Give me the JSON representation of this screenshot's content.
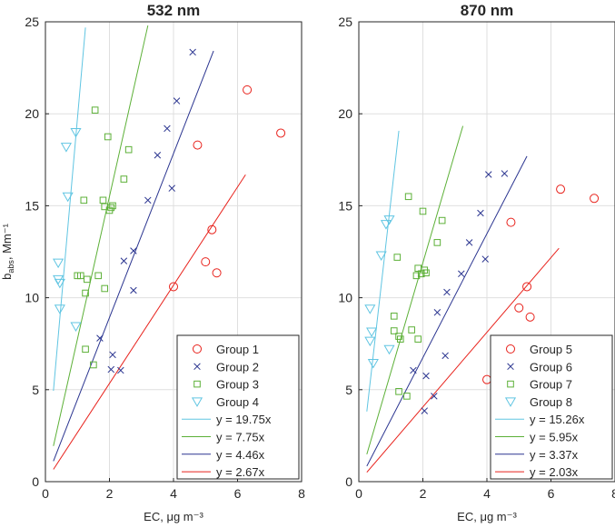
{
  "chart_data": [
    {
      "type": "scatter",
      "title": "532 nm",
      "xlabel": "EC, μg m⁻³",
      "ylabel_main": "b",
      "ylabel_sub": "abs",
      "ylabel_tail": ", Mm⁻¹",
      "xlim": [
        0,
        8
      ],
      "ylim": [
        0,
        25
      ],
      "xticks": [
        0,
        2,
        4,
        6,
        8
      ],
      "yticks": [
        0,
        5,
        10,
        15,
        20,
        25
      ],
      "grid": true,
      "legend_placement": "bottom-right",
      "series": [
        {
          "name": "Group 1",
          "marker": "circle",
          "color": "#e8221c",
          "points": [
            [
              4.0,
              10.6
            ],
            [
              5.0,
              11.95
            ],
            [
              5.2,
              13.7
            ],
            [
              5.35,
              11.35
            ],
            [
              4.75,
              18.3
            ],
            [
              6.3,
              21.3
            ],
            [
              7.35,
              18.95
            ]
          ]
        },
        {
          "name": "Group 2",
          "marker": "x",
          "color": "#2b3590",
          "points": [
            [
              1.7,
              7.8
            ],
            [
              2.1,
              6.9
            ],
            [
              2.05,
              6.1
            ],
            [
              2.35,
              6.05
            ],
            [
              2.45,
              12.0
            ],
            [
              2.75,
              12.55
            ],
            [
              2.75,
              10.4
            ],
            [
              3.2,
              15.3
            ],
            [
              3.5,
              17.75
            ],
            [
              3.8,
              19.2
            ],
            [
              3.95,
              15.95
            ],
            [
              4.1,
              20.7
            ],
            [
              4.6,
              23.35
            ]
          ]
        },
        {
          "name": "Group 3",
          "marker": "square",
          "color": "#5cb037",
          "points": [
            [
              1.55,
              20.2
            ],
            [
              1.0,
              11.2
            ],
            [
              1.1,
              11.2
            ],
            [
              1.2,
              15.3
            ],
            [
              1.25,
              10.25
            ],
            [
              1.3,
              11.0
            ],
            [
              1.25,
              7.2
            ],
            [
              1.5,
              6.35
            ],
            [
              1.65,
              11.2
            ],
            [
              1.8,
              15.3
            ],
            [
              1.85,
              14.95
            ],
            [
              1.85,
              10.5
            ],
            [
              1.95,
              18.75
            ],
            [
              2.0,
              14.75
            ],
            [
              2.05,
              14.9
            ],
            [
              2.1,
              15.0
            ],
            [
              2.45,
              16.45
            ],
            [
              2.6,
              18.05
            ]
          ]
        },
        {
          "name": "Group  4",
          "marker": "triangle",
          "color": "#60c5e2",
          "points": [
            [
              0.65,
              18.2
            ],
            [
              0.95,
              19.0
            ],
            [
              0.7,
              15.5
            ],
            [
              0.4,
              11.9
            ],
            [
              0.4,
              11.0
            ],
            [
              0.45,
              10.8
            ],
            [
              0.45,
              9.4
            ],
            [
              0.95,
              8.45
            ]
          ]
        }
      ],
      "fits": [
        {
          "label": "y = 19.75x",
          "slope": 19.75,
          "x_range": [
            0.25,
            1.25
          ],
          "color": "#60c5e2"
        },
        {
          "label": "y = 7.75x",
          "slope": 7.75,
          "x_range": [
            0.25,
            3.2
          ],
          "color": "#5cb037"
        },
        {
          "label": "y = 4.46x",
          "slope": 4.46,
          "x_range": [
            0.25,
            5.25
          ],
          "color": "#2b3590"
        },
        {
          "label": "y = 2.67x",
          "slope": 2.67,
          "x_range": [
            0.25,
            6.25
          ],
          "color": "#e8221c"
        }
      ]
    },
    {
      "type": "scatter",
      "title": "870 nm",
      "xlabel": "EC, μg m⁻³",
      "ylabel_main": "",
      "ylabel_sub": "",
      "ylabel_tail": "",
      "xlim": [
        0,
        8
      ],
      "ylim": [
        0,
        25
      ],
      "xticks": [
        0,
        2,
        4,
        6,
        8
      ],
      "yticks": [
        0,
        5,
        10,
        15,
        20,
        25
      ],
      "grid": true,
      "legend_placement": "bottom-right",
      "series": [
        {
          "name": "Group 5",
          "marker": "circle",
          "color": "#e8221c",
          "points": [
            [
              4.0,
              5.55
            ],
            [
              5.0,
              9.45
            ],
            [
              5.25,
              10.6
            ],
            [
              5.35,
              8.95
            ],
            [
              4.75,
              14.1
            ],
            [
              6.3,
              15.9
            ],
            [
              7.35,
              15.4
            ]
          ]
        },
        {
          "name": "Group 6",
          "marker": "x",
          "color": "#2b3590",
          "points": [
            [
              1.7,
              6.05
            ],
            [
              2.1,
              5.75
            ],
            [
              2.05,
              3.85
            ],
            [
              2.35,
              4.65
            ],
            [
              2.45,
              9.2
            ],
            [
              2.7,
              6.85
            ],
            [
              2.75,
              10.3
            ],
            [
              3.2,
              11.3
            ],
            [
              3.45,
              13.0
            ],
            [
              3.8,
              14.6
            ],
            [
              3.95,
              12.1
            ],
            [
              4.05,
              16.7
            ],
            [
              4.55,
              16.75
            ]
          ]
        },
        {
          "name": "Group 7",
          "marker": "square",
          "color": "#5cb037",
          "points": [
            [
              1.55,
              15.5
            ],
            [
              1.1,
              9.0
            ],
            [
              1.1,
              8.2
            ],
            [
              1.2,
              12.2
            ],
            [
              1.25,
              7.9
            ],
            [
              1.3,
              7.75
            ],
            [
              1.25,
              4.9
            ],
            [
              1.5,
              4.65
            ],
            [
              1.65,
              8.25
            ],
            [
              1.8,
              11.2
            ],
            [
              1.85,
              11.6
            ],
            [
              1.85,
              7.75
            ],
            [
              1.95,
              11.3
            ],
            [
              2.0,
              14.7
            ],
            [
              2.05,
              11.5
            ],
            [
              2.1,
              11.35
            ],
            [
              2.45,
              13.0
            ],
            [
              2.6,
              14.2
            ]
          ]
        },
        {
          "name": "Group 8",
          "marker": "triangle",
          "color": "#60c5e2",
          "points": [
            [
              0.7,
              12.3
            ],
            [
              0.95,
              14.25
            ],
            [
              0.85,
              14.0
            ],
            [
              0.35,
              9.4
            ],
            [
              0.4,
              8.15
            ],
            [
              0.35,
              7.65
            ],
            [
              0.45,
              6.45
            ],
            [
              0.95,
              7.2
            ]
          ]
        }
      ],
      "fits": [
        {
          "label": "y = 15.26x",
          "slope": 15.26,
          "x_range": [
            0.25,
            1.25
          ],
          "color": "#60c5e2"
        },
        {
          "label": "y = 5.95x",
          "slope": 5.95,
          "x_range": [
            0.25,
            3.25
          ],
          "color": "#5cb037"
        },
        {
          "label": "y = 3.37x",
          "slope": 3.37,
          "x_range": [
            0.25,
            5.25
          ],
          "color": "#2b3590"
        },
        {
          "label": "y = 2.03x",
          "slope": 2.03,
          "x_range": [
            0.25,
            6.25
          ],
          "color": "#e8221c"
        }
      ]
    }
  ]
}
